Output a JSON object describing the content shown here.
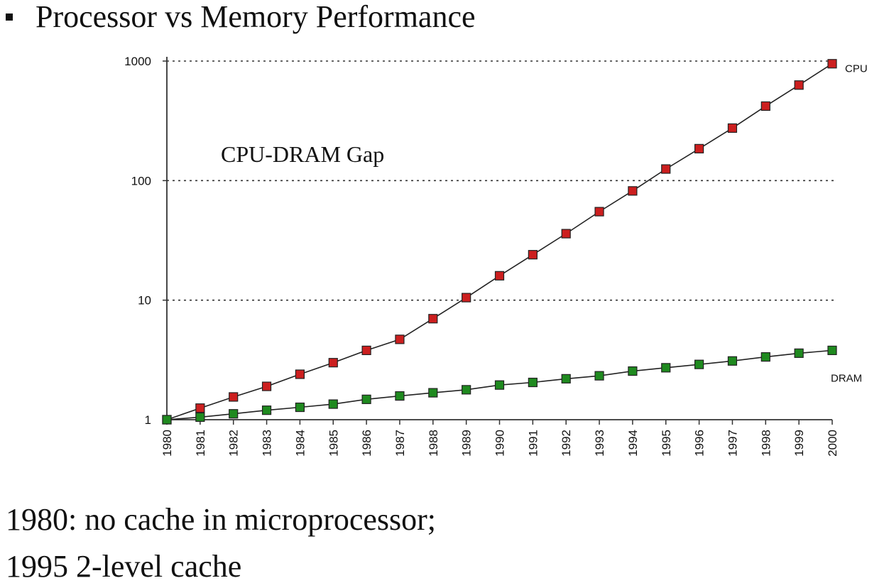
{
  "slide": {
    "title": "Processor vs Memory Performance",
    "notes": [
      "1980: no cache in microprocessor;",
      "1995 2-level cache"
    ]
  },
  "chart_data": {
    "type": "line",
    "x": [
      1980,
      1981,
      1982,
      1983,
      1984,
      1985,
      1986,
      1987,
      1988,
      1989,
      1990,
      1991,
      1992,
      1993,
      1994,
      1995,
      1996,
      1997,
      1998,
      1999,
      2000
    ],
    "series": [
      {
        "name": "CPU",
        "color": "#cc1f1f",
        "values": [
          1,
          1.25,
          1.55,
          1.9,
          2.4,
          3.0,
          3.8,
          4.7,
          7.0,
          10.5,
          16,
          24,
          36,
          55,
          82,
          125,
          185,
          275,
          420,
          630,
          950
        ]
      },
      {
        "name": "DRAM",
        "color": "#1f8a1f",
        "values": [
          1,
          1.05,
          1.12,
          1.2,
          1.27,
          1.35,
          1.48,
          1.58,
          1.68,
          1.78,
          1.95,
          2.05,
          2.2,
          2.33,
          2.55,
          2.72,
          2.9,
          3.1,
          3.35,
          3.6,
          3.8
        ]
      }
    ],
    "y_scale": "log",
    "ylim": [
      1,
      1000
    ],
    "y_ticks": [
      "1",
      "10",
      "100",
      "1000"
    ],
    "x_tick_labels": [
      "1980",
      "1981",
      "1982",
      "1983",
      "1984",
      "1985",
      "1986",
      "1987",
      "1988",
      "1989",
      "1990",
      "1991",
      "1992",
      "1993",
      "1994",
      "1995",
      "1996",
      "1997",
      "1998",
      "1999",
      "2000"
    ],
    "grid": "horizontal dotted",
    "annotation": "CPU-DRAM Gap"
  }
}
